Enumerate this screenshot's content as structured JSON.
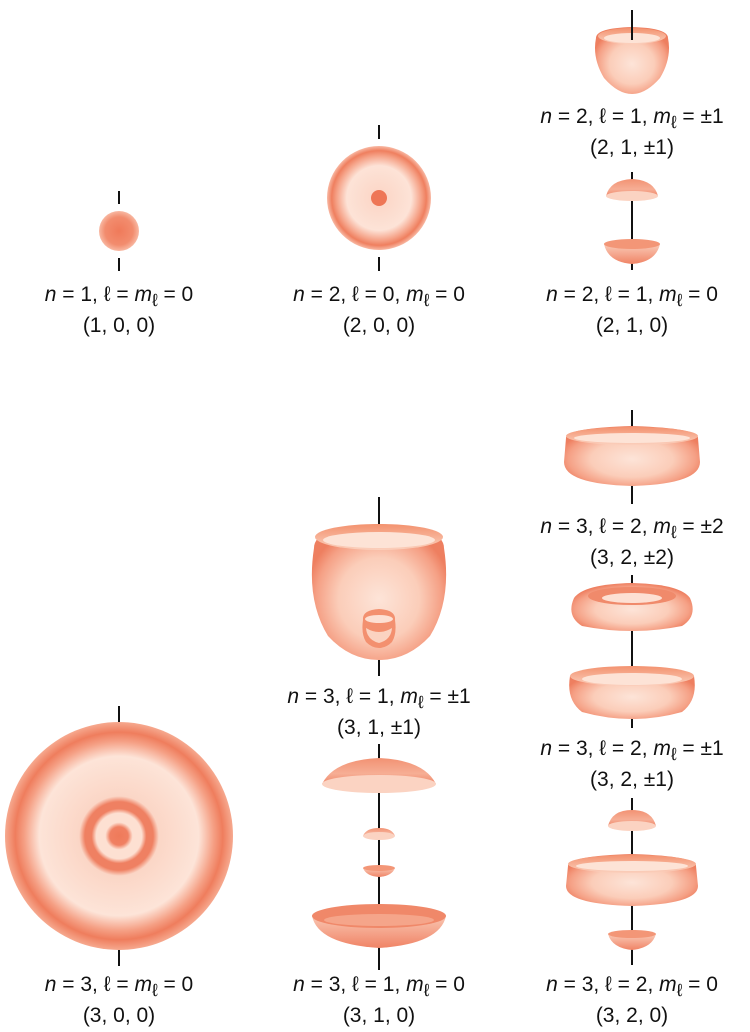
{
  "orbitals": [
    {
      "id": "n1-l0-m0",
      "quantum": "n = 1, ℓ = m<sub>ℓ</sub> = 0",
      "triple": "(1, 0, 0)",
      "n": 1,
      "l": 0,
      "ml": "0"
    },
    {
      "id": "n2-l0-m0",
      "quantum": "n = 2, ℓ = 0, m<sub>ℓ</sub> = 0",
      "triple": "(2, 0, 0)",
      "n": 2,
      "l": 0,
      "ml": "0"
    },
    {
      "id": "n2-l1-pm1",
      "quantum": "n = 2, ℓ = 1, m<sub>ℓ</sub> = ±1",
      "triple": "(2, 1, ±1)",
      "n": 2,
      "l": 1,
      "ml": "±1"
    },
    {
      "id": "n2-l1-m0",
      "quantum": "n = 2, ℓ = 1, m<sub>ℓ</sub> = 0",
      "triple": "(2, 1, 0)",
      "n": 2,
      "l": 1,
      "ml": "0"
    },
    {
      "id": "n3-l0-m0",
      "quantum": "n = 3, ℓ = m<sub>ℓ</sub> = 0",
      "triple": "(3, 0, 0)",
      "n": 3,
      "l": 0,
      "ml": "0"
    },
    {
      "id": "n3-l1-pm1",
      "quantum": "n = 3, ℓ = 1, m<sub>ℓ</sub> = ±1",
      "triple": "(3, 1, ±1)",
      "n": 3,
      "l": 1,
      "ml": "±1"
    },
    {
      "id": "n3-l1-m0",
      "quantum": "n = 3, ℓ = 1, m<sub>ℓ</sub> = 0",
      "triple": "(3, 1, 0)",
      "n": 3,
      "l": 1,
      "ml": "0"
    },
    {
      "id": "n3-l2-pm2",
      "quantum": "n = 3, ℓ = 2, m<sub>ℓ</sub> = ±2",
      "triple": "(3, 2, ±2)",
      "n": 3,
      "l": 2,
      "ml": "±2"
    },
    {
      "id": "n3-l2-pm1",
      "quantum": "n = 3, ℓ = 2, m<sub>ℓ</sub> = ±1",
      "triple": "(3, 2, ±1)",
      "n": 3,
      "l": 2,
      "ml": "±1"
    },
    {
      "id": "n3-l2-m0",
      "quantum": "n = 3, ℓ = 2, m<sub>ℓ</sub> = 0",
      "triple": "(3, 2, 0)",
      "n": 3,
      "l": 2,
      "ml": "0"
    }
  ],
  "colors": {
    "shell_dark": "#ef7f5f",
    "shell_light": "#fde0d3",
    "axis": "#111111",
    "text": "#111111"
  }
}
